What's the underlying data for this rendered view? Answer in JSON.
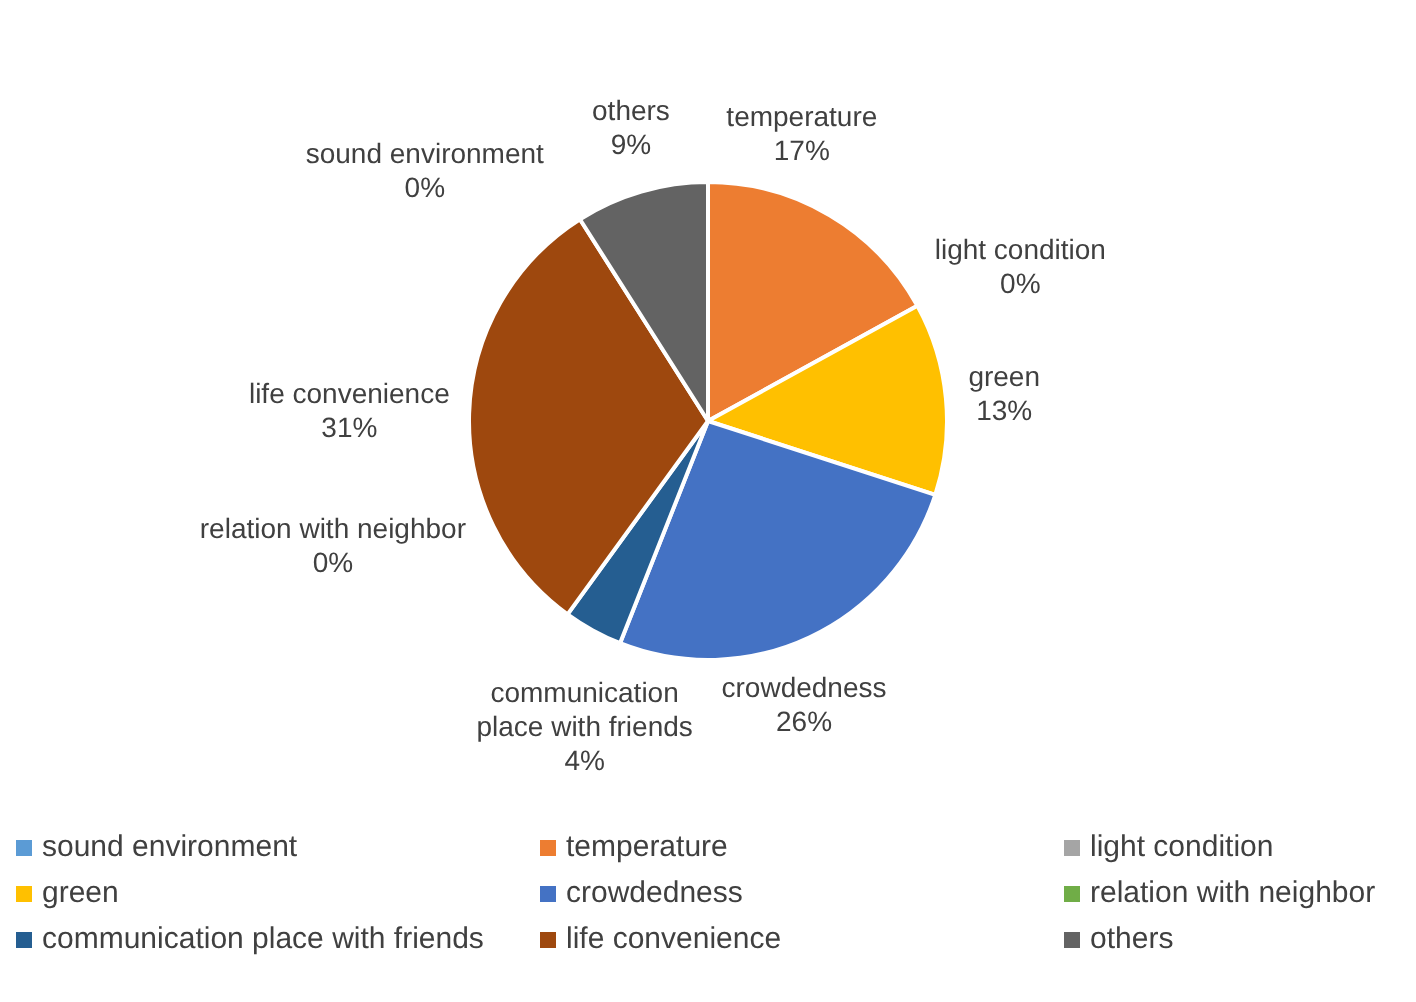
{
  "chart_data": {
    "type": "pie",
    "categories": [
      "sound environment",
      "temperature",
      "light condition",
      "green",
      "crowdedness",
      "relation with neighbor",
      "communication place with friends",
      "life convenience",
      "others"
    ],
    "values": [
      0,
      17,
      0,
      13,
      26,
      0,
      4,
      31,
      9
    ],
    "value_labels": [
      "0%",
      "17%",
      "0%",
      "13%",
      "26%",
      "0%",
      "4%",
      "31%",
      "9%"
    ],
    "colors": [
      "#5b9bd5",
      "#ed7d31",
      "#a5a5a5",
      "#ffc000",
      "#4472c4",
      "#70ad47",
      "#255e91",
      "#9e480e",
      "#636363"
    ],
    "legend": "bottom"
  }
}
